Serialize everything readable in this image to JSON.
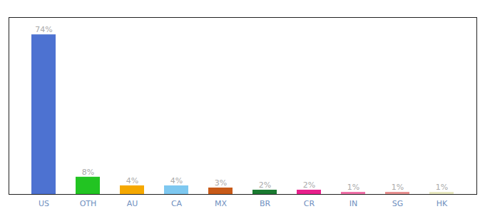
{
  "chart_data": {
    "type": "bar",
    "categories": [
      "US",
      "OTH",
      "AU",
      "CA",
      "MX",
      "BR",
      "CR",
      "IN",
      "SG",
      "HK"
    ],
    "values": [
      74,
      8,
      4,
      4,
      3,
      2,
      2,
      1,
      1,
      1
    ],
    "value_labels": [
      "74%",
      "8%",
      "4%",
      "4%",
      "3%",
      "2%",
      "2%",
      "1%",
      "1%",
      "1%"
    ],
    "colors": [
      "#4d72d1",
      "#22c422",
      "#f5a800",
      "#7ec8f0",
      "#c85a18",
      "#1a7a30",
      "#e8208c",
      "#f070a8",
      "#e89090",
      "#e8e8c0"
    ],
    "ylim": [
      0,
      82
    ],
    "data_labels": true,
    "tick_labels": "x",
    "grid": false
  }
}
